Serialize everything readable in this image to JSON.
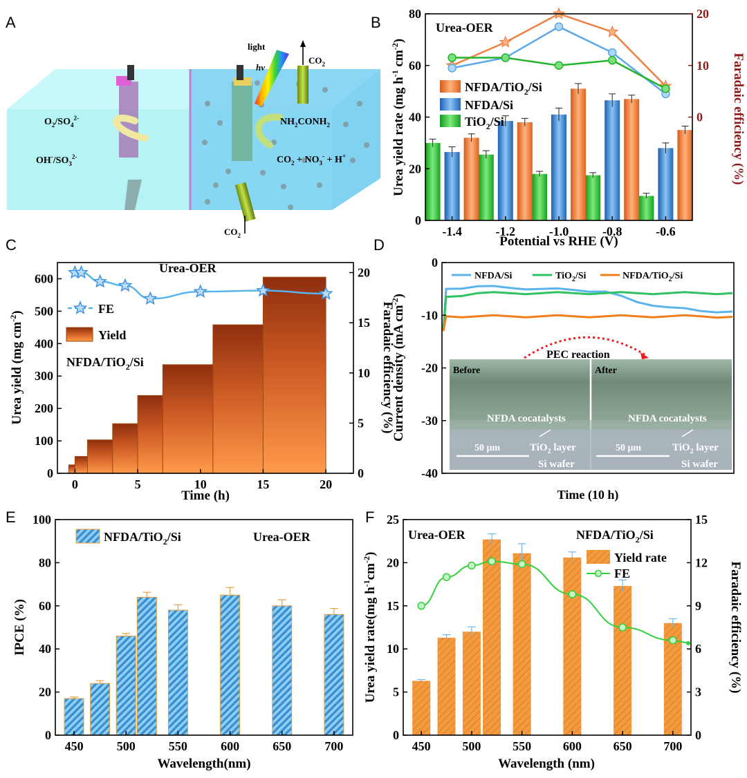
{
  "panels": {
    "A": "A",
    "B": "B",
    "C": "C",
    "D": "D",
    "E": "E",
    "F": "F"
  },
  "panel_a": {
    "light": "light",
    "hv": "hv",
    "co2_top": "CO",
    "co2_top_sub": "2",
    "co2_bottom": "CO",
    "co2_bottom_sub": "2",
    "anode_product": "O",
    "anode_product_sub": "2",
    "anode_product_rest": "/SO",
    "anode_product_sub2": "4",
    "anode_product_sup": "2-",
    "anode_reactant": "OH",
    "anode_reactant_sup": "-",
    "anode_reactant_rest": "/SO",
    "anode_reactant_sub": "3",
    "anode_reactant_sup2": "2-",
    "cathode_product": "NH",
    "cathode_product_sub": "2",
    "cathode_product_rest": "CONH",
    "cathode_product_sub2": "2",
    "cathode_reactant": "CO",
    "cathode_reactant_sub": "2",
    "cathode_reactant_rest": " + NO",
    "cathode_reactant_sub2": "3",
    "cathode_reactant_sup": "-",
    "cathode_reactant_rest2": " + H",
    "cathode_reactant_sup2": "+"
  },
  "colors": {
    "orange": "#f07e3c",
    "blue": "#3c8fd8",
    "green": "#22b42a",
    "lightblue": "#5ab4ec",
    "darkred": "#8b1a1a",
    "fe_green": "#2fd23a"
  },
  "chart_data": [
    {
      "panel": "B",
      "type": "bar",
      "title": "Urea-OER",
      "xlabel": "Potential vs RHE (V)",
      "ylabel": "Urea yield rate (mg h-1 cm-2)",
      "ylabel2": "Faradaic efficiency (%)",
      "categories": [
        "-1.4",
        "-1.2",
        "-1.0",
        "-0.8",
        "-0.6"
      ],
      "ylim": [
        0,
        80
      ],
      "y2lim": [
        -20,
        20
      ],
      "yticks": [
        "0",
        "20",
        "40",
        "60",
        "80"
      ],
      "y2ticks": [
        "0",
        "10",
        "20"
      ],
      "legend": [
        "NFDA/TiO2/Si",
        "NFDA/Si",
        "TiO2/Si"
      ],
      "series": [
        {
          "name": "TiO2/Si",
          "values": [
            30,
            25.5,
            18,
            17.5,
            9.5
          ],
          "errors": [
            1.5,
            1.5,
            1,
            1,
            1
          ]
        },
        {
          "name": "NFDA/Si",
          "values": [
            26.5,
            38.5,
            41,
            46.5,
            28
          ],
          "errors": [
            2,
            2,
            2.5,
            2.5,
            2
          ]
        },
        {
          "name": "NFDA/TiO2/Si",
          "values": [
            32,
            38,
            51,
            47,
            35
          ],
          "errors": [
            1.5,
            1.5,
            2,
            1.5,
            1.5
          ]
        }
      ],
      "fe_series": [
        {
          "name": "NFDA/TiO2/Si",
          "values": [
            10,
            14.5,
            20,
            16.5,
            6
          ]
        },
        {
          "name": "NFDA/Si",
          "values": [
            9.5,
            11.5,
            17.5,
            12.5,
            4.5
          ]
        },
        {
          "name": "TiO2/Si",
          "values": [
            11.5,
            11.5,
            10,
            11,
            5.5
          ]
        }
      ]
    },
    {
      "panel": "C",
      "type": "bar",
      "title": "Urea-OER",
      "sample": "NFDA/TiO2/Si",
      "xlabel": "Time (h)",
      "ylabel": "Urea yield (mg cm-2)",
      "ylabel2": "Faradaic efficiency (%)",
      "ylim": [
        0,
        650
      ],
      "y2lim": [
        0,
        21
      ],
      "yticks": [
        "0",
        "100",
        "200",
        "300",
        "400",
        "500",
        "600"
      ],
      "y2ticks": [
        "0",
        "5",
        "10",
        "15",
        "20"
      ],
      "xticks": [
        "0",
        "5",
        "10",
        "15",
        "20"
      ],
      "legend": [
        "FE",
        "Yield"
      ],
      "bars": [
        {
          "x0": -0.5,
          "x1": 0,
          "value": 26
        },
        {
          "x0": 0,
          "x1": 1,
          "value": 52
        },
        {
          "x0": 1,
          "x1": 3,
          "value": 103
        },
        {
          "x0": 3,
          "x1": 5,
          "value": 153
        },
        {
          "x0": 5,
          "x1": 7,
          "value": 240
        },
        {
          "x0": 7,
          "x1": 11,
          "value": 335
        },
        {
          "x0": 11,
          "x1": 15,
          "value": 458
        },
        {
          "x0": 15,
          "x1": 20,
          "value": 605
        }
      ],
      "fe_points": [
        {
          "x": 0,
          "y": 20
        },
        {
          "x": 0.5,
          "y": 20
        },
        {
          "x": 2,
          "y": 19.1
        },
        {
          "x": 4,
          "y": 18.7
        },
        {
          "x": 6,
          "y": 17.4
        },
        {
          "x": 10,
          "y": 18.1
        },
        {
          "x": 15,
          "y": 18.2
        },
        {
          "x": 20,
          "y": 17.9
        }
      ]
    },
    {
      "panel": "D",
      "type": "line",
      "xlabel": "Time (10 h)",
      "ylabel": "Current density (mA cm-2)",
      "ylim": [
        -40,
        0
      ],
      "yticks": [
        "0",
        "-10",
        "-20",
        "-30",
        "-40"
      ],
      "legend": [
        "NFDA/Si",
        "TiO2/Si",
        "NFDA/TiO2/Si"
      ],
      "series": [
        {
          "name": "NFDA/Si",
          "values": [
            -5,
            -4.5,
            -4.8,
            -5,
            -5.2,
            -5.5,
            -7.5,
            -8.5,
            -9.2,
            -9.3
          ]
        },
        {
          "name": "TiO2/Si",
          "values": [
            -6.5,
            -5.8,
            -5.8,
            -5.8,
            -5.8,
            -5.8,
            -5.8,
            -5.8,
            -5.8,
            -5.8
          ]
        },
        {
          "name": "NFDA/TiO2/Si",
          "values": [
            -10.2,
            -10.2,
            -10.2,
            -10.2,
            -10.2,
            -10.2,
            -10.2,
            -10.2,
            -10.2,
            -10.3
          ]
        }
      ],
      "inset": {
        "arrow_label": "PEC reaction",
        "before": "Before",
        "after": "After",
        "cocatalyst": "NFDA cocatalysts",
        "scale": "50 μm",
        "tio2_layer": "TiO2 layer",
        "si_wafer": "Si wafer"
      }
    },
    {
      "panel": "E",
      "type": "bar",
      "title": "Urea-OER",
      "sample": "NFDA/TiO2/Si",
      "xlabel": "Wavelength(nm)",
      "ylabel": "IPCE (%)",
      "ylim": [
        0,
        100
      ],
      "yticks": [
        "0",
        "20",
        "40",
        "60",
        "80",
        "100"
      ],
      "xticks": [
        "450",
        "500",
        "550",
        "600",
        "650",
        "700"
      ],
      "x": [
        450,
        475,
        500,
        520,
        550,
        600,
        650,
        700
      ],
      "values": [
        17,
        24,
        46,
        64,
        58,
        65,
        60,
        56
      ],
      "errors": [
        0.7,
        1.3,
        1.2,
        2.3,
        2.5,
        3.5,
        2.8,
        2.8
      ]
    },
    {
      "panel": "F",
      "type": "bar",
      "title": "Urea-OER",
      "sample": "NFDA/TiO2/Si",
      "xlabel": "Wavelength (nm)",
      "ylabel": "Urea yield rate(mg h-1cm-2)",
      "ylabel2": "Faradaic efficiency (%)",
      "ylim": [
        0,
        25
      ],
      "y2lim": [
        0,
        15
      ],
      "yticks": [
        "0",
        "5",
        "10",
        "15",
        "20",
        "25"
      ],
      "y2ticks": [
        "0",
        "3",
        "6",
        "9",
        "12",
        "15"
      ],
      "xticks": [
        "450",
        "500",
        "550",
        "600",
        "650",
        "700"
      ],
      "legend": [
        "Yield rate",
        "FE"
      ],
      "x": [
        450,
        475,
        500,
        520,
        550,
        600,
        650,
        700
      ],
      "values": [
        6.3,
        11.3,
        12,
        22.7,
        21.1,
        20.6,
        17.3,
        13
      ],
      "errors": [
        0.15,
        0.35,
        0.55,
        0.65,
        1.1,
        0.65,
        0.7,
        0.5
      ],
      "fe": [
        9,
        11,
        11.8,
        12.1,
        11.9,
        9.8,
        7.5,
        6.6
      ],
      "fe_end": 6.4
    }
  ]
}
